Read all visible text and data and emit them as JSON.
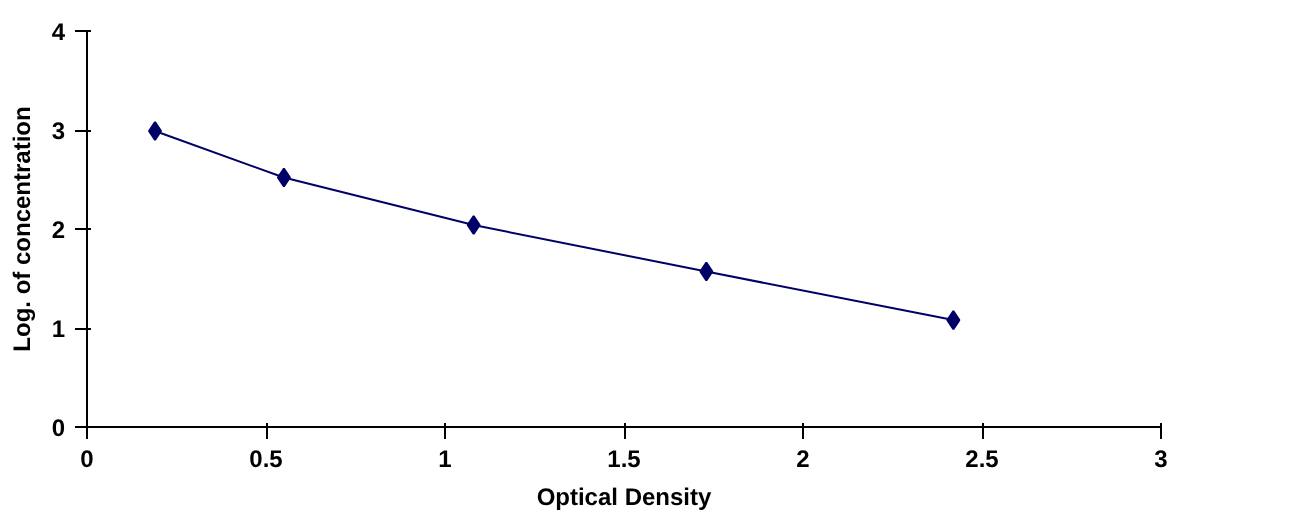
{
  "chart_data": {
    "type": "line",
    "xlabel": "Optical Density",
    "ylabel": "Log. of concentration",
    "x": [
      0.19,
      0.55,
      1.08,
      1.73,
      2.42
    ],
    "series": [
      {
        "color": "#000066",
        "values": [
          2.99,
          2.52,
          2.04,
          1.57,
          1.08
        ]
      }
    ],
    "xlim": [
      0,
      3
    ],
    "xticks": [
      0,
      0.5,
      1,
      1.5,
      2,
      2.5,
      3
    ],
    "ylim": [
      0,
      4
    ],
    "yticks": [
      0,
      1,
      2,
      3,
      4
    ],
    "grid": false,
    "marker": "diamond",
    "line_style": "solid"
  }
}
